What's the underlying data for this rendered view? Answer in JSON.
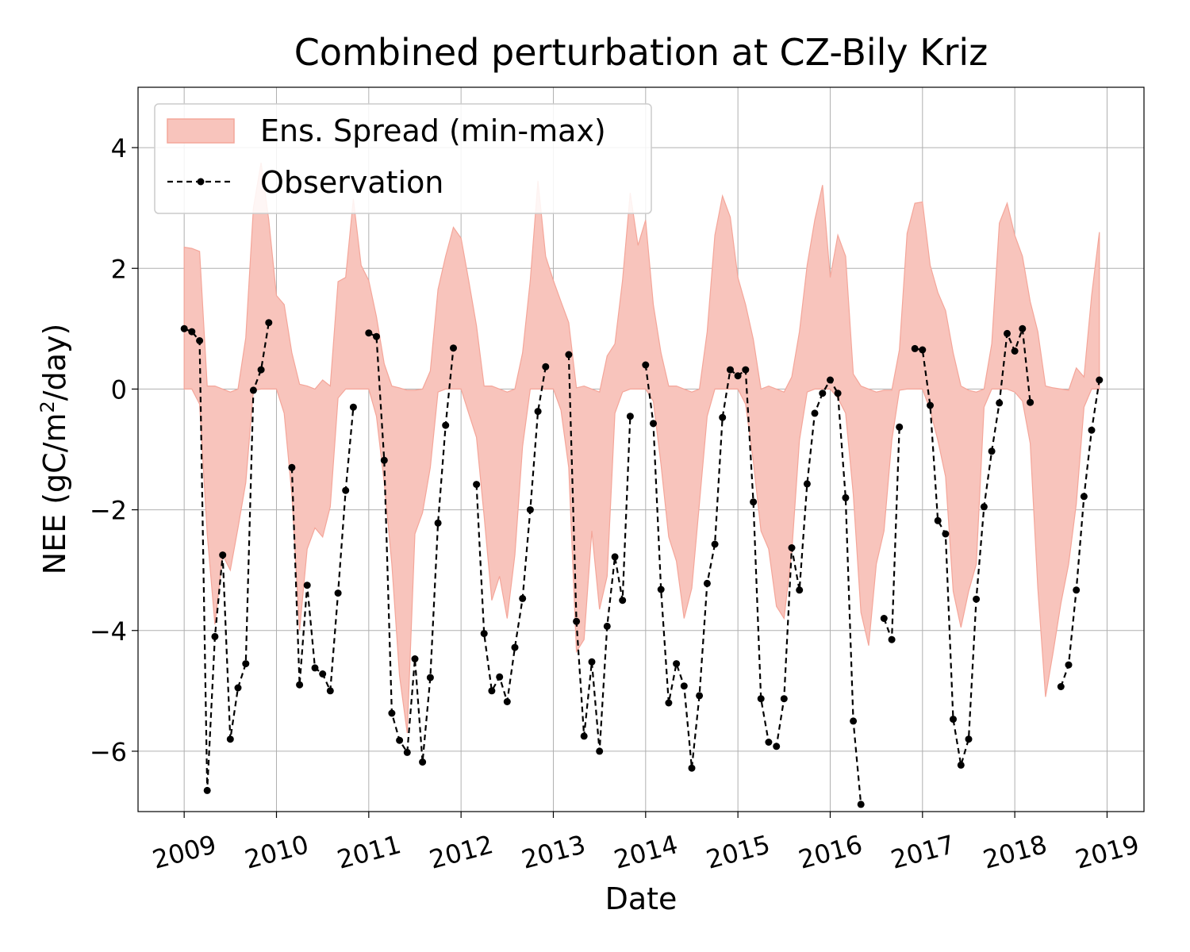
{
  "chart_data": {
    "type": "area",
    "title": "Combined perturbation at CZ-Bily Kriz",
    "xlabel": "Date",
    "ylabel": "NEE",
    "ylabel_unit_prefix": "(gC/m",
    "ylabel_unit_sup": "2",
    "ylabel_unit_suffix": "/day)",
    "xlim": [
      2008.5,
      2019.4
    ],
    "ylim": [
      -7,
      5
    ],
    "x_ticks": [
      2009,
      2010,
      2011,
      2012,
      2013,
      2014,
      2015,
      2016,
      2017,
      2018,
      2019
    ],
    "x_tick_labels": [
      "2009",
      "2010",
      "2011",
      "2012",
      "2013",
      "2014",
      "2015",
      "2016",
      "2017",
      "2018",
      "2019"
    ],
    "y_ticks": [
      -6,
      -4,
      -2,
      0,
      2,
      4
    ],
    "y_tick_labels": [
      "−6",
      "−4",
      "−2",
      "0",
      "2",
      "4"
    ],
    "grid": true,
    "legend_position": "top-left",
    "series": [
      {
        "name": "Ens. Spread (min-max)",
        "kind": "band",
        "color": "#f4a69a",
        "fill_color": "#f8c4bc",
        "x": [
          2009.0,
          2009.083,
          2009.167,
          2009.25,
          2009.333,
          2009.417,
          2009.5,
          2009.583,
          2009.667,
          2009.75,
          2009.833,
          2009.917,
          2010.0,
          2010.083,
          2010.167,
          2010.25,
          2010.333,
          2010.417,
          2010.5,
          2010.583,
          2010.667,
          2010.75,
          2010.833,
          2010.917,
          2011.0,
          2011.083,
          2011.167,
          2011.25,
          2011.333,
          2011.417,
          2011.5,
          2011.583,
          2011.667,
          2011.75,
          2011.833,
          2011.917,
          2012.0,
          2012.083,
          2012.167,
          2012.25,
          2012.333,
          2012.417,
          2012.5,
          2012.583,
          2012.667,
          2012.75,
          2012.833,
          2012.917,
          2013.0,
          2013.083,
          2013.167,
          2013.25,
          2013.333,
          2013.417,
          2013.5,
          2013.583,
          2013.667,
          2013.75,
          2013.833,
          2013.917,
          2014.0,
          2014.083,
          2014.167,
          2014.25,
          2014.333,
          2014.417,
          2014.5,
          2014.583,
          2014.667,
          2014.75,
          2014.833,
          2014.917,
          2015.0,
          2015.083,
          2015.167,
          2015.25,
          2015.333,
          2015.417,
          2015.5,
          2015.583,
          2015.667,
          2015.75,
          2015.833,
          2015.917,
          2016.0,
          2016.083,
          2016.167,
          2016.25,
          2016.333,
          2016.417,
          2016.5,
          2016.583,
          2016.667,
          2016.75,
          2016.833,
          2016.917,
          2017.0,
          2017.083,
          2017.167,
          2017.25,
          2017.333,
          2017.417,
          2017.5,
          2017.583,
          2017.667,
          2017.75,
          2017.833,
          2017.917,
          2018.0,
          2018.083,
          2018.167,
          2018.25,
          2018.333,
          2018.417,
          2018.5,
          2018.583,
          2018.667,
          2018.75,
          2018.833,
          2018.917
        ],
        "upper": [
          2.35,
          2.33,
          2.28,
          0.05,
          0.05,
          0.0,
          -0.05,
          0.0,
          0.85,
          3.0,
          3.75,
          2.8,
          1.55,
          1.4,
          0.6,
          0.08,
          0.05,
          0.0,
          0.15,
          0.05,
          1.78,
          1.85,
          3.15,
          2.05,
          1.8,
          1.2,
          0.42,
          0.05,
          0.02,
          -0.02,
          -0.02,
          0.0,
          0.3,
          1.65,
          2.2,
          2.68,
          2.5,
          1.8,
          1.05,
          0.05,
          0.05,
          0.0,
          -0.05,
          0.0,
          0.6,
          1.8,
          3.45,
          2.2,
          1.8,
          1.45,
          1.1,
          0.02,
          0.05,
          0.0,
          -0.05,
          0.55,
          0.75,
          1.8,
          3.25,
          2.38,
          2.8,
          1.4,
          0.6,
          0.05,
          0.05,
          0.0,
          -0.05,
          0.0,
          0.95,
          2.55,
          3.2,
          2.85,
          1.85,
          1.4,
          0.82,
          0.0,
          0.05,
          0.0,
          -0.05,
          0.2,
          0.95,
          2.05,
          2.8,
          3.38,
          1.85,
          2.55,
          2.2,
          0.25,
          0.05,
          0.0,
          -0.05,
          -0.02,
          -0.02,
          0.65,
          2.58,
          3.08,
          3.1,
          2.05,
          1.6,
          1.3,
          0.6,
          0.05,
          -0.02,
          -0.05,
          0.0,
          0.75,
          2.75,
          3.08,
          2.55,
          2.2,
          1.45,
          0.95,
          0.05,
          0.02,
          0.0,
          -0.02,
          0.35,
          0.2,
          1.55,
          2.6
        ],
        "lower": [
          0.0,
          0.0,
          -0.25,
          -2.4,
          -3.9,
          -2.75,
          -3.0,
          -2.3,
          -1.55,
          -0.02,
          0.0,
          0.0,
          0.0,
          -0.4,
          -1.75,
          -4.0,
          -2.65,
          -2.3,
          -2.45,
          -1.95,
          -0.15,
          0.0,
          0.0,
          0.0,
          0.0,
          -0.45,
          -1.55,
          -2.9,
          -4.75,
          -5.7,
          -2.4,
          -2.05,
          -1.3,
          -0.05,
          0.0,
          0.0,
          0.0,
          -0.4,
          -0.8,
          -2.1,
          -3.5,
          -3.1,
          -3.8,
          -2.75,
          -0.95,
          0.0,
          0.0,
          0.0,
          0.0,
          -0.35,
          -1.3,
          -4.35,
          -4.15,
          -2.35,
          -3.65,
          -3.1,
          -0.4,
          -0.05,
          0.0,
          0.0,
          0.0,
          -0.2,
          -1.25,
          -2.45,
          -2.85,
          -3.8,
          -3.3,
          -1.9,
          -0.45,
          0.0,
          0.0,
          0.0,
          0.0,
          -0.25,
          -1.2,
          -2.35,
          -2.65,
          -3.6,
          -3.8,
          -2.7,
          -0.85,
          -0.05,
          0.0,
          0.0,
          0.0,
          -0.15,
          -0.4,
          -1.75,
          -3.7,
          -4.25,
          -2.9,
          -2.35,
          -0.85,
          -0.02,
          0.0,
          0.0,
          0.0,
          -0.35,
          -0.85,
          -1.45,
          -3.35,
          -3.95,
          -3.35,
          -2.9,
          -0.3,
          0.0,
          0.0,
          0.0,
          -0.05,
          -0.2,
          -0.9,
          -3.3,
          -5.1,
          -4.35,
          -3.55,
          -2.9,
          -1.9,
          -0.3,
          0.0,
          0.0
        ]
      },
      {
        "name": "Observation",
        "kind": "line",
        "color": "#000000",
        "line_style": "dashed",
        "marker": "circle",
        "x": [
          2009.0,
          2009.083,
          2009.167,
          2009.25,
          2009.333,
          2009.417,
          2009.5,
          2009.583,
          2009.667,
          2009.75,
          2009.833,
          2009.917,
          2010.0,
          2010.083,
          2010.167,
          2010.25,
          2010.333,
          2010.417,
          2010.5,
          2010.583,
          2010.667,
          2010.75,
          2010.833,
          2010.917,
          2011.0,
          2011.083,
          2011.167,
          2011.25,
          2011.333,
          2011.417,
          2011.5,
          2011.583,
          2011.667,
          2011.75,
          2011.833,
          2011.917,
          2012.0,
          2012.083,
          2012.167,
          2012.25,
          2012.333,
          2012.417,
          2012.5,
          2012.583,
          2012.667,
          2012.75,
          2012.833,
          2012.917,
          2013.0,
          2013.083,
          2013.167,
          2013.25,
          2013.333,
          2013.417,
          2013.5,
          2013.583,
          2013.667,
          2013.75,
          2013.833,
          2013.917,
          2014.0,
          2014.083,
          2014.167,
          2014.25,
          2014.333,
          2014.417,
          2014.5,
          2014.583,
          2014.667,
          2014.75,
          2014.833,
          2014.917,
          2015.0,
          2015.083,
          2015.167,
          2015.25,
          2015.333,
          2015.417,
          2015.5,
          2015.583,
          2015.667,
          2015.75,
          2015.833,
          2015.917,
          2016.0,
          2016.083,
          2016.167,
          2016.25,
          2016.333,
          2016.417,
          2016.5,
          2016.583,
          2016.667,
          2016.75,
          2016.833,
          2016.917,
          2017.0,
          2017.083,
          2017.167,
          2017.25,
          2017.333,
          2017.417,
          2017.5,
          2017.583,
          2017.667,
          2017.75,
          2017.833,
          2017.917,
          2018.0,
          2018.083,
          2018.167,
          2018.25,
          2018.333,
          2018.417,
          2018.5,
          2018.583,
          2018.667,
          2018.75,
          2018.833,
          2018.917
        ],
        "y": [
          1.0,
          0.95,
          0.8,
          -6.65,
          -4.1,
          -2.75,
          -5.8,
          -4.95,
          -4.55,
          -0.02,
          0.32,
          1.1,
          null,
          null,
          -1.3,
          -4.9,
          -3.25,
          -4.62,
          -4.72,
          -5.0,
          -3.38,
          -1.68,
          -0.3,
          null,
          0.93,
          0.87,
          -1.18,
          -5.37,
          -5.82,
          -6.02,
          -4.47,
          -6.18,
          -4.78,
          -2.22,
          -0.6,
          0.68,
          null,
          null,
          -1.58,
          -4.05,
          -5.0,
          -4.77,
          -5.18,
          -4.28,
          -3.47,
          -2.0,
          -0.37,
          0.37,
          null,
          null,
          0.57,
          -3.85,
          -5.75,
          -4.52,
          -6.0,
          -3.93,
          -2.78,
          -3.5,
          -0.45,
          null,
          0.4,
          -0.57,
          -3.32,
          -5.2,
          -4.55,
          -4.92,
          -6.28,
          -5.08,
          -3.22,
          -2.57,
          -0.47,
          0.32,
          0.22,
          0.32,
          -1.87,
          -5.13,
          -5.85,
          -5.92,
          -5.13,
          -2.63,
          -3.33,
          -1.57,
          -0.4,
          -0.07,
          0.15,
          -0.07,
          -1.8,
          -5.5,
          -6.88,
          null,
          null,
          -3.8,
          -4.15,
          -0.63,
          null,
          0.67,
          0.65,
          -0.27,
          -2.18,
          -2.4,
          -5.47,
          -6.23,
          -5.8,
          -3.48,
          -1.95,
          -1.03,
          -0.23,
          0.92,
          0.63,
          1.0,
          -0.22,
          null,
          null,
          null,
          -4.93,
          -4.57,
          -3.33,
          -1.78,
          -0.68,
          0.15
        ]
      }
    ]
  }
}
